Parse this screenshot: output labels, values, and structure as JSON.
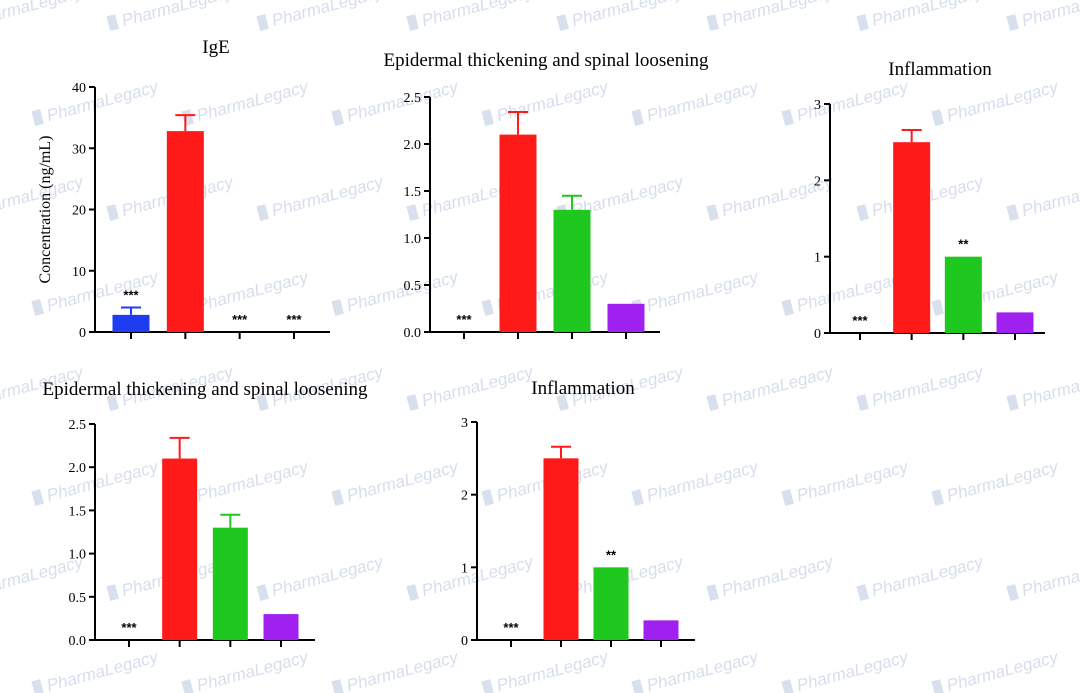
{
  "watermark": {
    "text": "PharmaLegacy"
  },
  "colors": {
    "blue": "#1f3df0",
    "red": "#ff1a1a",
    "green": "#1ec81e",
    "purple": "#a020f0"
  },
  "chart_data": [
    {
      "type": "bar",
      "title": "IgE",
      "ylabel": "Concentration (ng/mL)",
      "ylim": [
        0,
        40
      ],
      "yticks": [
        "0",
        "10",
        "20",
        "30",
        "40"
      ],
      "categories": [
        "",
        "",
        "",
        ""
      ],
      "values": [
        2.8,
        32.8,
        0,
        0
      ],
      "errors": [
        1.2,
        2.6,
        0,
        0
      ],
      "colors": [
        "#1f3df0",
        "#ff1a1a",
        "#1ec81e",
        "#a020f0"
      ],
      "annotations": [
        "***",
        "",
        "***",
        "***"
      ]
    },
    {
      "type": "bar",
      "title": "Epidermal thickening and spinal loosening",
      "ylabel": "",
      "ylim": [
        0,
        2.5
      ],
      "yticks": [
        "0.0",
        "0.5",
        "1.0",
        "1.5",
        "2.0",
        "2.5"
      ],
      "categories": [
        "",
        "",
        "",
        ""
      ],
      "values": [
        0,
        2.1,
        1.3,
        0.3
      ],
      "errors": [
        0,
        0.24,
        0.15,
        0
      ],
      "colors": [
        "#1f3df0",
        "#ff1a1a",
        "#1ec81e",
        "#a020f0"
      ],
      "annotations": [
        "***",
        "",
        "",
        ""
      ]
    },
    {
      "type": "bar",
      "title": "Inflammation",
      "ylabel": "",
      "ylim": [
        0,
        3
      ],
      "yticks": [
        "0",
        "1",
        "2",
        "3"
      ],
      "categories": [
        "",
        "",
        "",
        ""
      ],
      "values": [
        0,
        2.5,
        1.0,
        0.27
      ],
      "errors": [
        0,
        0.16,
        0,
        0
      ],
      "colors": [
        "#1f3df0",
        "#ff1a1a",
        "#1ec81e",
        "#a020f0"
      ],
      "annotations": [
        "***",
        "",
        "**",
        ""
      ]
    },
    {
      "type": "bar",
      "title": "Epidermal thickening and spinal loosening",
      "ylabel": "",
      "ylim": [
        0,
        2.5
      ],
      "yticks": [
        "0.0",
        "0.5",
        "1.0",
        "1.5",
        "2.0",
        "2.5"
      ],
      "categories": [
        "",
        "",
        "",
        ""
      ],
      "values": [
        0,
        2.1,
        1.3,
        0.3
      ],
      "errors": [
        0,
        0.24,
        0.15,
        0
      ],
      "colors": [
        "#1f3df0",
        "#ff1a1a",
        "#1ec81e",
        "#a020f0"
      ],
      "annotations": [
        "***",
        "",
        "",
        ""
      ]
    },
    {
      "type": "bar",
      "title": "Inflammation",
      "ylabel": "",
      "ylim": [
        0,
        3
      ],
      "yticks": [
        "0",
        "1",
        "2",
        "3"
      ],
      "categories": [
        "",
        "",
        "",
        ""
      ],
      "values": [
        0,
        2.5,
        1.0,
        0.27
      ],
      "errors": [
        0,
        0.16,
        0,
        0
      ],
      "colors": [
        "#1f3df0",
        "#ff1a1a",
        "#1ec81e",
        "#a020f0"
      ],
      "annotations": [
        "***",
        "",
        "**",
        ""
      ]
    }
  ]
}
